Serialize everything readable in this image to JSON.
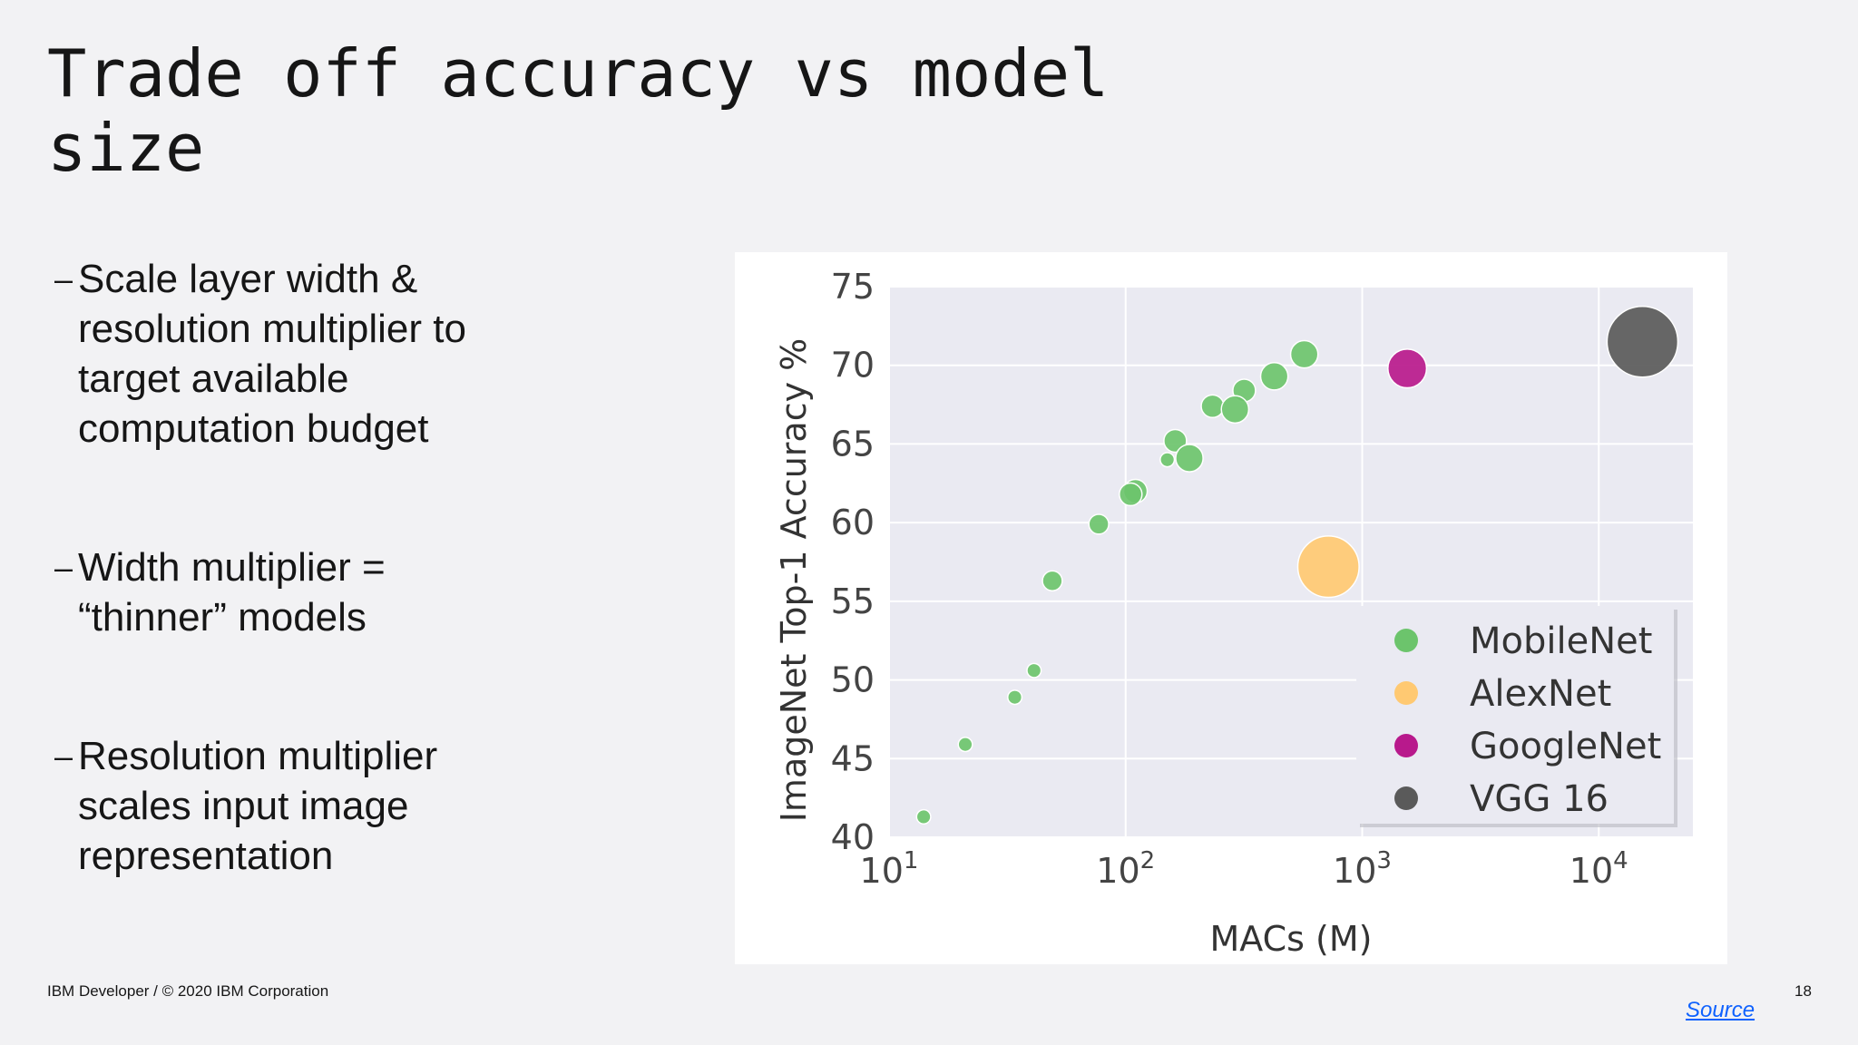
{
  "slide": {
    "title": "Trade off accuracy vs model size",
    "bullets": [
      "Scale layer width & resolution multiplier to target available computation budget",
      "Width multiplier = “thinner” models",
      "Resolution multiplier scales input image representation"
    ],
    "bullet_marker": "–",
    "footer": "IBM Developer / © 2020 IBM Corporation",
    "page_number": "18",
    "source_link": "Source"
  },
  "chart_data": {
    "type": "scatter",
    "title": "",
    "xlabel": "MACs (M)",
    "ylabel": "ImageNet Top-1 Accuracy %",
    "x_scale": "log",
    "xlim": [
      10,
      25000
    ],
    "ylim": [
      40,
      75
    ],
    "x_ticks": [
      {
        "value": 10,
        "base": "10",
        "exp": "1"
      },
      {
        "value": 100,
        "base": "10",
        "exp": "2"
      },
      {
        "value": 1000,
        "base": "10",
        "exp": "3"
      },
      {
        "value": 10000,
        "base": "10",
        "exp": "4"
      }
    ],
    "y_ticks": [
      40,
      45,
      50,
      55,
      60,
      65,
      70,
      75
    ],
    "grid": true,
    "legend_position": "bottom-right",
    "series": [
      {
        "name": "MobileNet",
        "color": "#6cc46c",
        "points": [
          {
            "x": 14,
            "y": 41.3,
            "size": 3
          },
          {
            "x": 21,
            "y": 45.9,
            "size": 3
          },
          {
            "x": 34,
            "y": 48.9,
            "size": 3
          },
          {
            "x": 41,
            "y": 50.6,
            "size": 3
          },
          {
            "x": 49,
            "y": 56.3,
            "size": 4.2
          },
          {
            "x": 77,
            "y": 59.9,
            "size": 4.2
          },
          {
            "x": 110,
            "y": 62.0,
            "size": 5.0
          },
          {
            "x": 105,
            "y": 61.8,
            "size": 4.8
          },
          {
            "x": 150,
            "y": 64.0,
            "size": 3
          },
          {
            "x": 162,
            "y": 65.2,
            "size": 4.8
          },
          {
            "x": 186,
            "y": 64.1,
            "size": 5.8
          },
          {
            "x": 233,
            "y": 67.4,
            "size": 4.8
          },
          {
            "x": 317,
            "y": 68.4,
            "size": 4.8
          },
          {
            "x": 290,
            "y": 67.2,
            "size": 5.8
          },
          {
            "x": 425,
            "y": 69.3,
            "size": 5.8
          },
          {
            "x": 569,
            "y": 70.7,
            "size": 5.8
          }
        ]
      },
      {
        "name": "AlexNet",
        "color": "#ffc972",
        "points": [
          {
            "x": 720,
            "y": 57.2,
            "size": 13
          }
        ]
      },
      {
        "name": "GoogleNet",
        "color": "#b8198c",
        "points": [
          {
            "x": 1550,
            "y": 69.8,
            "size": 8.2
          }
        ]
      },
      {
        "name": "VGG 16",
        "color": "#5a5a5a",
        "points": [
          {
            "x": 15300,
            "y": 71.5,
            "size": 15
          }
        ]
      }
    ]
  }
}
